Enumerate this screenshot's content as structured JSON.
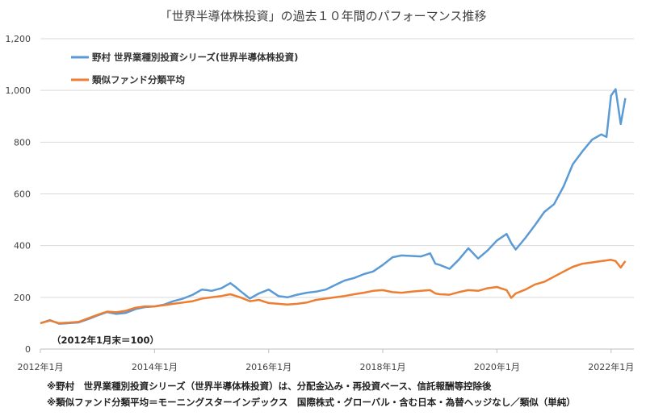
{
  "chart_data": {
    "type": "line",
    "title": "「世界半導体株投資」の過去１０年間のパフォーマンス推移",
    "xlabel": "",
    "ylabel": "",
    "ylim": [
      0,
      1200
    ],
    "yticks": [
      0,
      200,
      400,
      600,
      800,
      1000,
      1200
    ],
    "ytick_labels": [
      "0",
      "200",
      "400",
      "600",
      "800",
      "1,000",
      "1,200"
    ],
    "xlim": [
      2012.0,
      2022.4
    ],
    "xticks": [
      2012.0,
      2014.0,
      2016.0,
      2018.0,
      2020.0,
      2022.0
    ],
    "xtick_labels": [
      "2012年1月",
      "2014年1月",
      "2016年1月",
      "2018年1月",
      "2020年1月",
      "2022年1月"
    ],
    "legend_position": "top-left",
    "series": [
      {
        "name": "野村 世界業種別投資シリーズ(世界半導体株投資)",
        "color": "#5B9BD5",
        "x": [
          2012.0,
          2012.17,
          2012.33,
          2012.5,
          2012.67,
          2012.83,
          2013.0,
          2013.17,
          2013.33,
          2013.5,
          2013.67,
          2013.83,
          2014.0,
          2014.17,
          2014.33,
          2014.5,
          2014.67,
          2014.83,
          2014.92,
          2015.0,
          2015.17,
          2015.33,
          2015.42,
          2015.5,
          2015.67,
          2015.83,
          2016.0,
          2016.17,
          2016.33,
          2016.5,
          2016.67,
          2016.83,
          2017.0,
          2017.17,
          2017.33,
          2017.5,
          2017.67,
          2017.83,
          2018.0,
          2018.17,
          2018.33,
          2018.5,
          2018.67,
          2018.83,
          2018.92,
          2019.0,
          2019.17,
          2019.33,
          2019.5,
          2019.67,
          2019.83,
          2020.0,
          2020.17,
          2020.25,
          2020.33,
          2020.5,
          2020.67,
          2020.83,
          2021.0,
          2021.17,
          2021.33,
          2021.5,
          2021.67,
          2021.83,
          2021.92,
          2022.0,
          2022.08,
          2022.17,
          2022.25
        ],
        "values": [
          100,
          112,
          98,
          100,
          103,
          115,
          130,
          143,
          136,
          140,
          155,
          162,
          165,
          172,
          185,
          195,
          210,
          230,
          228,
          225,
          235,
          255,
          240,
          225,
          195,
          215,
          230,
          205,
          200,
          210,
          218,
          222,
          230,
          248,
          265,
          275,
          290,
          300,
          325,
          355,
          362,
          360,
          358,
          370,
          330,
          325,
          310,
          345,
          390,
          350,
          380,
          420,
          445,
          410,
          385,
          430,
          480,
          530,
          560,
          630,
          715,
          765,
          810,
          830,
          820,
          980,
          1005,
          870,
          970
        ]
      },
      {
        "name": "類似ファンド分類平均",
        "color": "#ED7D31",
        "x": [
          2012.0,
          2012.17,
          2012.33,
          2012.5,
          2012.67,
          2012.83,
          2013.0,
          2013.17,
          2013.33,
          2013.5,
          2013.67,
          2013.83,
          2014.0,
          2014.17,
          2014.33,
          2014.5,
          2014.67,
          2014.83,
          2015.0,
          2015.17,
          2015.33,
          2015.5,
          2015.67,
          2015.83,
          2016.0,
          2016.17,
          2016.33,
          2016.5,
          2016.67,
          2016.83,
          2017.0,
          2017.17,
          2017.33,
          2017.5,
          2017.67,
          2017.83,
          2018.0,
          2018.17,
          2018.33,
          2018.5,
          2018.67,
          2018.83,
          2018.92,
          2019.0,
          2019.17,
          2019.33,
          2019.5,
          2019.67,
          2019.83,
          2020.0,
          2020.17,
          2020.25,
          2020.33,
          2020.5,
          2020.67,
          2020.83,
          2021.0,
          2021.17,
          2021.33,
          2021.5,
          2021.67,
          2021.83,
          2022.0,
          2022.08,
          2022.17,
          2022.25
        ],
        "values": [
          100,
          110,
          100,
          102,
          105,
          118,
          132,
          145,
          142,
          148,
          160,
          165,
          165,
          170,
          175,
          180,
          185,
          195,
          200,
          205,
          212,
          200,
          185,
          190,
          178,
          175,
          172,
          175,
          180,
          190,
          195,
          200,
          205,
          212,
          218,
          225,
          228,
          220,
          218,
          222,
          225,
          228,
          215,
          212,
          210,
          220,
          228,
          225,
          235,
          240,
          228,
          198,
          215,
          230,
          250,
          260,
          280,
          300,
          318,
          330,
          335,
          340,
          345,
          340,
          315,
          340
        ]
      }
    ]
  },
  "annotation": "（2012年1月末＝100）",
  "notes": [
    "※野村　世界業種別投資シリーズ（世界半導体株投資）は、分配金込み・再投資ベース、信託報酬等控除後",
    "※類似ファンド分類平均＝モーニングスターインデックス　国際株式・グローバル・含む日本・為替ヘッジなし／類似（単純）"
  ]
}
